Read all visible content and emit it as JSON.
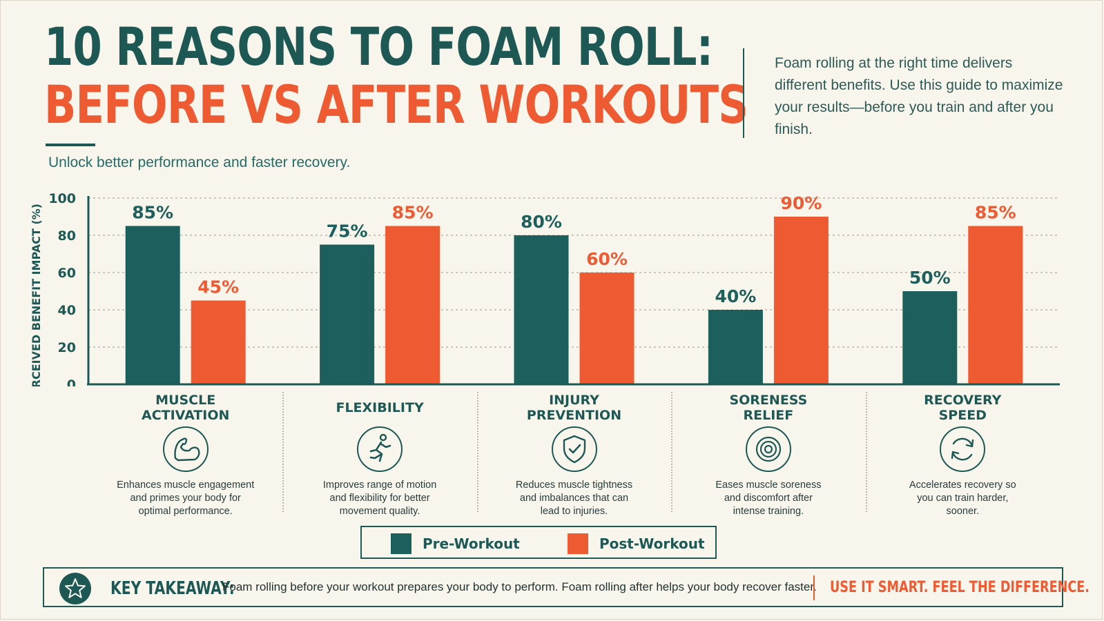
{
  "header": {
    "title_line1": "10 REASONS TO FOAM ROLL:",
    "title_line2": "BEFORE VS AFTER WORKOUTS",
    "subtitle": "Unlock better performance and faster recovery.",
    "intro": "Foam rolling at the right time delivers different benefits. Use this guide to maximize your results—before you train and after you finish."
  },
  "colors": {
    "pre": "#1d5f5c",
    "post": "#ee5a32",
    "text": "#1d5855"
  },
  "chart_data": {
    "type": "bar",
    "ylabel": "PERCEIVED BENEFIT IMPACT (%)",
    "ylim": [
      0,
      100
    ],
    "yticks": [
      0,
      20,
      40,
      60,
      80,
      100
    ],
    "grid": true,
    "legend_position": "bottom",
    "categories": [
      "MUSCLE\nACTIVATION",
      "FLEXIBILITY",
      "INJURY\nPREVENTION",
      "SORENESS\nRELIEF",
      "RECOVERY\nSPEED"
    ],
    "series": [
      {
        "name": "Pre-Workout",
        "values": [
          85,
          75,
          80,
          40,
          50
        ],
        "labels": [
          "85%",
          "75%",
          "80%",
          "40%",
          "50%"
        ]
      },
      {
        "name": "Post-Workout",
        "values": [
          45,
          85,
          60,
          90,
          85
        ],
        "labels": [
          "45%",
          "85%",
          "60%",
          "90%",
          "85%"
        ]
      }
    ]
  },
  "categories": [
    {
      "name": "MUSCLE\nACTIVATION",
      "icon": "flexed-bicep-icon",
      "desc": "Enhances muscle engagement\nand primes your body for\noptimal performance."
    },
    {
      "name": "FLEXIBILITY",
      "icon": "running-figure-icon",
      "desc": "Improves range of motion\nand flexibility for better\nmovement quality."
    },
    {
      "name": "INJURY\nPREVENTION",
      "icon": "shield-check-icon",
      "desc": "Reduces muscle tightness\nand imbalances that can\nlead to injuries."
    },
    {
      "name": "SORENESS\nRELIEF",
      "icon": "concentric-circles-icon",
      "desc": "Eases muscle soreness\nand discomfort after\nintense training."
    },
    {
      "name": "RECOVERY\nSPEED",
      "icon": "refresh-arrows-icon",
      "desc": "Accelerates recovery so\nyou can train harder,\nsooner."
    }
  ],
  "legend": {
    "pre_label": "Pre-Workout",
    "post_label": "Post-Workout"
  },
  "takeaway": {
    "label": "KEY TAKEAWAY:",
    "text": "Foam rolling before your workout prepares your body to perform. Foam rolling after helps your body recover faster.",
    "slogan": "USE IT SMART. FEEL THE DIFFERENCE.",
    "icon": "star-icon"
  }
}
